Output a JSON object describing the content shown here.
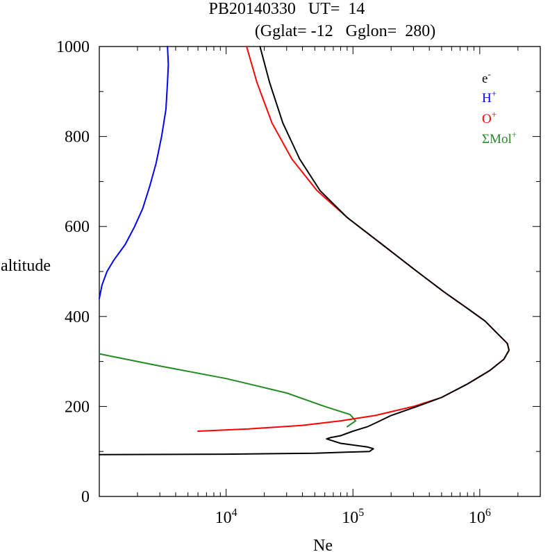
{
  "chart_data": {
    "type": "line",
    "title": "PB20140330   UT=  14",
    "subtitle": "(Gglat= -12   Gglon=  280)",
    "xlabel": "Ne",
    "ylabel": "altitude",
    "xscale": "log",
    "xlim": [
      1000,
      3000000
    ],
    "ylim": [
      0,
      1000
    ],
    "grid": false,
    "legend_position": "top-right",
    "y_ticks": [
      {
        "value": 0,
        "label": "0"
      },
      {
        "value": 200,
        "label": "200"
      },
      {
        "value": 400,
        "label": "400"
      },
      {
        "value": 600,
        "label": "600"
      },
      {
        "value": 800,
        "label": "800"
      },
      {
        "value": 1000,
        "label": "1000"
      }
    ],
    "x_ticks": [
      {
        "value": 10000,
        "base": "10",
        "exp": "4"
      },
      {
        "value": 100000,
        "base": "10",
        "exp": "5"
      },
      {
        "value": 1000000,
        "base": "10",
        "exp": "6"
      }
    ],
    "series": [
      {
        "name": "e-",
        "legend_base": "e",
        "legend_sup": "-",
        "color": "#000000",
        "points": [
          [
            1000,
            93
          ],
          [
            10000,
            94
          ],
          [
            50000,
            96
          ],
          [
            80000,
            98
          ],
          [
            135000,
            100
          ],
          [
            145000,
            106
          ],
          [
            130000,
            110
          ],
          [
            80000,
            118
          ],
          [
            62000,
            128
          ],
          [
            67000,
            131
          ],
          [
            80000,
            135
          ],
          [
            100000,
            145
          ],
          [
            130000,
            155
          ],
          [
            155000,
            165
          ],
          [
            200000,
            180
          ],
          [
            320000,
            200
          ],
          [
            500000,
            220
          ],
          [
            800000,
            250
          ],
          [
            1200000,
            280
          ],
          [
            1550000,
            305
          ],
          [
            1700000,
            325
          ],
          [
            1650000,
            340
          ],
          [
            1400000,
            360
          ],
          [
            1100000,
            390
          ],
          [
            780000,
            420
          ],
          [
            520000,
            455
          ],
          [
            320000,
            500
          ],
          [
            170000,
            560
          ],
          [
            90000,
            620
          ],
          [
            55000,
            680
          ],
          [
            38000,
            750
          ],
          [
            28000,
            830
          ],
          [
            22000,
            920
          ],
          [
            18500,
            1000
          ]
        ]
      },
      {
        "name": "H+",
        "legend_base": "H",
        "legend_sup": "+",
        "color": "#0000ff",
        "points": [
          [
            1000,
            440
          ],
          [
            1050,
            470
          ],
          [
            1150,
            500
          ],
          [
            1300,
            525
          ],
          [
            1600,
            560
          ],
          [
            1900,
            600
          ],
          [
            2200,
            640
          ],
          [
            2500,
            690
          ],
          [
            2800,
            740
          ],
          [
            3100,
            800
          ],
          [
            3350,
            860
          ],
          [
            3450,
            920
          ],
          [
            3500,
            960
          ],
          [
            3450,
            1000
          ]
        ]
      },
      {
        "name": "O+",
        "legend_base": "O",
        "legend_sup": "+",
        "color": "#ff0000",
        "points": [
          [
            6000,
            145
          ],
          [
            15000,
            150
          ],
          [
            40000,
            158
          ],
          [
            80000,
            168
          ],
          [
            150000,
            180
          ],
          [
            300000,
            200
          ],
          [
            500000,
            220
          ],
          [
            800000,
            250
          ],
          [
            1200000,
            280
          ],
          [
            1550000,
            305
          ],
          [
            1700000,
            325
          ],
          [
            1650000,
            340
          ],
          [
            1400000,
            360
          ],
          [
            1100000,
            390
          ],
          [
            780000,
            420
          ],
          [
            520000,
            455
          ],
          [
            320000,
            500
          ],
          [
            170000,
            560
          ],
          [
            90000,
            620
          ],
          [
            52000,
            680
          ],
          [
            33000,
            750
          ],
          [
            23000,
            830
          ],
          [
            17500,
            920
          ],
          [
            14500,
            1000
          ]
        ]
      },
      {
        "name": "ΣMol+",
        "legend_base": "ΣMol",
        "legend_sup": "+",
        "color": "#228b22",
        "points": [
          [
            1000,
            317
          ],
          [
            3000,
            290
          ],
          [
            10000,
            262
          ],
          [
            30000,
            230
          ],
          [
            60000,
            200
          ],
          [
            95000,
            182
          ],
          [
            105000,
            168
          ],
          [
            90000,
            155
          ]
        ]
      }
    ]
  }
}
